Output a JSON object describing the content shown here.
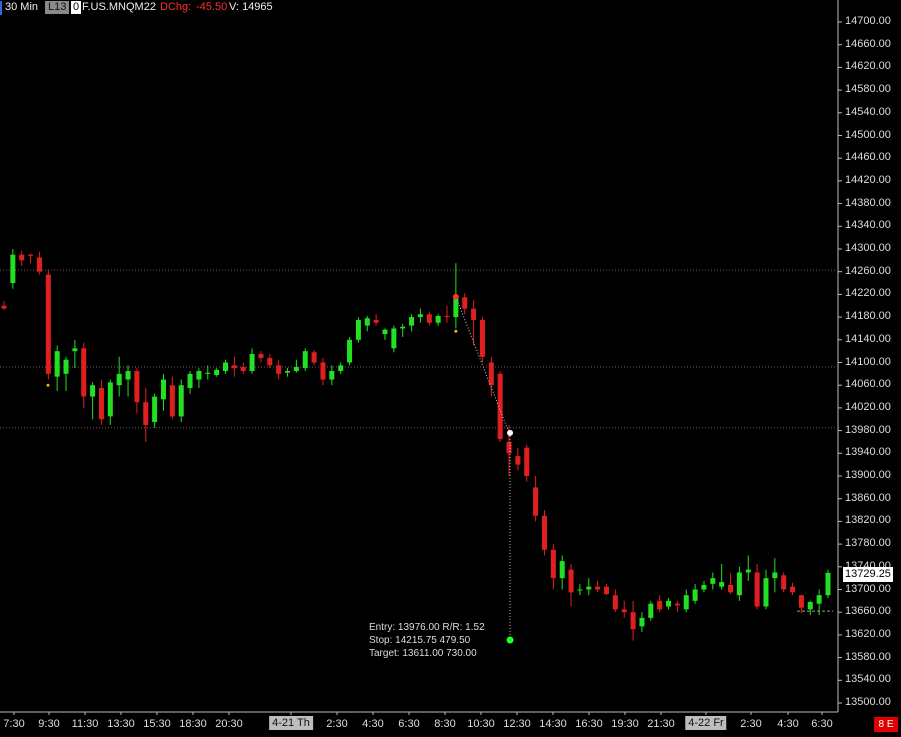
{
  "header": {
    "timeframe": "30 Min",
    "link_label": "L13",
    "zero_label": "0",
    "symbol": "F.US.MNQM22",
    "dchg_label": "DChg:",
    "dchg_value": "-45.50",
    "volume_label": "V:",
    "volume_value": "14965"
  },
  "price_axis": {
    "labels": [
      "14700.00",
      "14660.00",
      "14620.00",
      "14580.00",
      "14540.00",
      "14500.00",
      "14460.00",
      "14420.00",
      "14380.00",
      "14340.00",
      "14300.00",
      "14260.00",
      "14220.00",
      "14180.00",
      "14140.00",
      "14100.00",
      "14060.00",
      "14020.00",
      "13980.00",
      "13940.00",
      "13900.00",
      "13860.00",
      "13820.00",
      "13780.00",
      "13740.00",
      "13700.00",
      "13660.00",
      "13620.00",
      "13580.00",
      "13540.00",
      "13500.00"
    ],
    "current_price": "13729.25",
    "corner_badge": "8 E"
  },
  "time_axis": {
    "labels": [
      "7:30",
      "9:30",
      "11:30",
      "13:30",
      "15:30",
      "18:30",
      "20:30",
      "4-21 Th",
      "2:30",
      "4:30",
      "6:30",
      "8:30",
      "10:30",
      "12:30",
      "14:30",
      "16:30",
      "19:30",
      "21:30",
      "4-22 Fr",
      "2:30",
      "4:30",
      "6:30"
    ]
  },
  "trade_note": {
    "line1": "Entry: 13976.00  R/R: 1.52",
    "line2": "Stop: 14215.75  479.50",
    "line3": "Target: 13611.00  730.00"
  },
  "colors": {
    "up": "#22e022",
    "down": "#e02020",
    "background": "#000000",
    "grid_dotted": "#7a5a5a",
    "target_marker": "#22ff22"
  },
  "chart_data": {
    "type": "candlestick",
    "symbol": "F.US.MNQM22",
    "interval": "30 Min",
    "ylim": [
      13500,
      14720
    ],
    "horizontal_levels": [
      14263,
      14092,
      13985
    ],
    "trade": {
      "entry": 13976.0,
      "stop": 14215.75,
      "target": 13611.0,
      "rr": 1.52
    },
    "candles": [
      [
        14200,
        14208,
        14193,
        14195
      ],
      [
        14240,
        14300,
        14230,
        14290
      ],
      [
        14290,
        14297,
        14270,
        14280
      ],
      [
        14290,
        14292,
        14275,
        14288
      ],
      [
        14285,
        14295,
        14255,
        14260
      ],
      [
        14255,
        14262,
        14070,
        14080
      ],
      [
        14075,
        14130,
        14050,
        14120
      ],
      [
        14080,
        14110,
        14050,
        14105
      ],
      [
        14120,
        14140,
        14090,
        14125
      ],
      [
        14125,
        14135,
        14020,
        14040
      ],
      [
        14040,
        14065,
        14000,
        14060
      ],
      [
        14055,
        14070,
        13990,
        14000
      ],
      [
        14005,
        14070,
        13990,
        14065
      ],
      [
        14060,
        14110,
        14040,
        14080
      ],
      [
        14070,
        14095,
        14040,
        14085
      ],
      [
        14085,
        14090,
        14010,
        14030
      ],
      [
        14030,
        14055,
        13960,
        13990
      ],
      [
        13995,
        14045,
        13985,
        14040
      ],
      [
        14035,
        14080,
        14015,
        14070
      ],
      [
        14060,
        14075,
        14000,
        14005
      ],
      [
        14005,
        14070,
        13995,
        14060
      ],
      [
        14055,
        14085,
        14045,
        14080
      ],
      [
        14070,
        14090,
        14055,
        14085
      ],
      [
        14080,
        14095,
        14070,
        14082
      ],
      [
        14078,
        14090,
        14075,
        14087
      ],
      [
        14085,
        14105,
        14080,
        14100
      ],
      [
        14095,
        14110,
        14075,
        14090
      ],
      [
        14092,
        14100,
        14080,
        14085
      ],
      [
        14085,
        14125,
        14080,
        14115
      ],
      [
        14115,
        14120,
        14100,
        14108
      ],
      [
        14108,
        14115,
        14090,
        14095
      ],
      [
        14095,
        14105,
        14070,
        14080
      ],
      [
        14082,
        14090,
        14075,
        14085
      ],
      [
        14085,
        14105,
        14082,
        14092
      ],
      [
        14090,
        14125,
        14085,
        14120
      ],
      [
        14118,
        14122,
        14095,
        14100
      ],
      [
        14100,
        14108,
        14060,
        14070
      ],
      [
        14070,
        14095,
        14060,
        14085
      ],
      [
        14085,
        14100,
        14080,
        14095
      ],
      [
        14100,
        14145,
        14095,
        14140
      ],
      [
        14140,
        14180,
        14135,
        14175
      ],
      [
        14165,
        14182,
        14155,
        14178
      ],
      [
        14175,
        14185,
        14165,
        14170
      ],
      [
        14150,
        14160,
        14140,
        14158
      ],
      [
        14125,
        14165,
        14118,
        14160
      ],
      [
        14160,
        14168,
        14145,
        14163
      ],
      [
        14165,
        14185,
        14155,
        14180
      ],
      [
        14180,
        14195,
        14170,
        14185
      ],
      [
        14185,
        14190,
        14165,
        14170
      ],
      [
        14170,
        14185,
        14165,
        14182
      ],
      [
        14182,
        14200,
        14170,
        14180
      ],
      [
        14180,
        14275,
        14160,
        14215
      ],
      [
        14215,
        14222,
        14185,
        14195
      ],
      [
        14195,
        14210,
        14130,
        14175
      ],
      [
        14175,
        14180,
        14100,
        14110
      ],
      [
        14100,
        14110,
        14040,
        14060
      ],
      [
        14080,
        14085,
        13960,
        13965
      ],
      [
        13960,
        13990,
        13900,
        13940
      ],
      [
        13935,
        13950,
        13910,
        13920
      ],
      [
        13950,
        13955,
        13890,
        13900
      ],
      [
        13880,
        13900,
        13820,
        13830
      ],
      [
        13830,
        13840,
        13760,
        13770
      ],
      [
        13770,
        13780,
        13700,
        13720
      ],
      [
        13720,
        13760,
        13700,
        13750
      ],
      [
        13735,
        13745,
        13670,
        13695
      ],
      [
        13700,
        13710,
        13690,
        13700
      ],
      [
        13700,
        13720,
        13690,
        13705
      ],
      [
        13705,
        13715,
        13695,
        13700
      ],
      [
        13705,
        13710,
        13690,
        13692
      ],
      [
        13690,
        13700,
        13660,
        13665
      ],
      [
        13665,
        13680,
        13650,
        13660
      ],
      [
        13660,
        13680,
        13610,
        13630
      ],
      [
        13635,
        13660,
        13625,
        13650
      ],
      [
        13650,
        13680,
        13645,
        13675
      ],
      [
        13680,
        13690,
        13660,
        13665
      ],
      [
        13670,
        13685,
        13665,
        13680
      ],
      [
        13675,
        13680,
        13660,
        13672
      ],
      [
        13665,
        13700,
        13660,
        13690
      ],
      [
        13680,
        13710,
        13675,
        13700
      ],
      [
        13700,
        13715,
        13695,
        13708
      ],
      [
        13710,
        13730,
        13700,
        13720
      ],
      [
        13705,
        13745,
        13700,
        13713
      ],
      [
        13708,
        13728,
        13692,
        13695
      ],
      [
        13690,
        13740,
        13680,
        13730
      ],
      [
        13730,
        13760,
        13715,
        13735
      ],
      [
        13730,
        13745,
        13665,
        13670
      ],
      [
        13670,
        13735,
        13665,
        13720
      ],
      [
        13720,
        13755,
        13695,
        13730
      ],
      [
        13725,
        13730,
        13695,
        13700
      ],
      [
        13705,
        13712,
        13690,
        13695
      ],
      [
        13690,
        13690,
        13658,
        13668
      ],
      [
        13665,
        13680,
        13655,
        13678
      ],
      [
        13675,
        13700,
        13655,
        13690
      ],
      [
        13690,
        13735,
        13685,
        13729.25
      ]
    ]
  }
}
